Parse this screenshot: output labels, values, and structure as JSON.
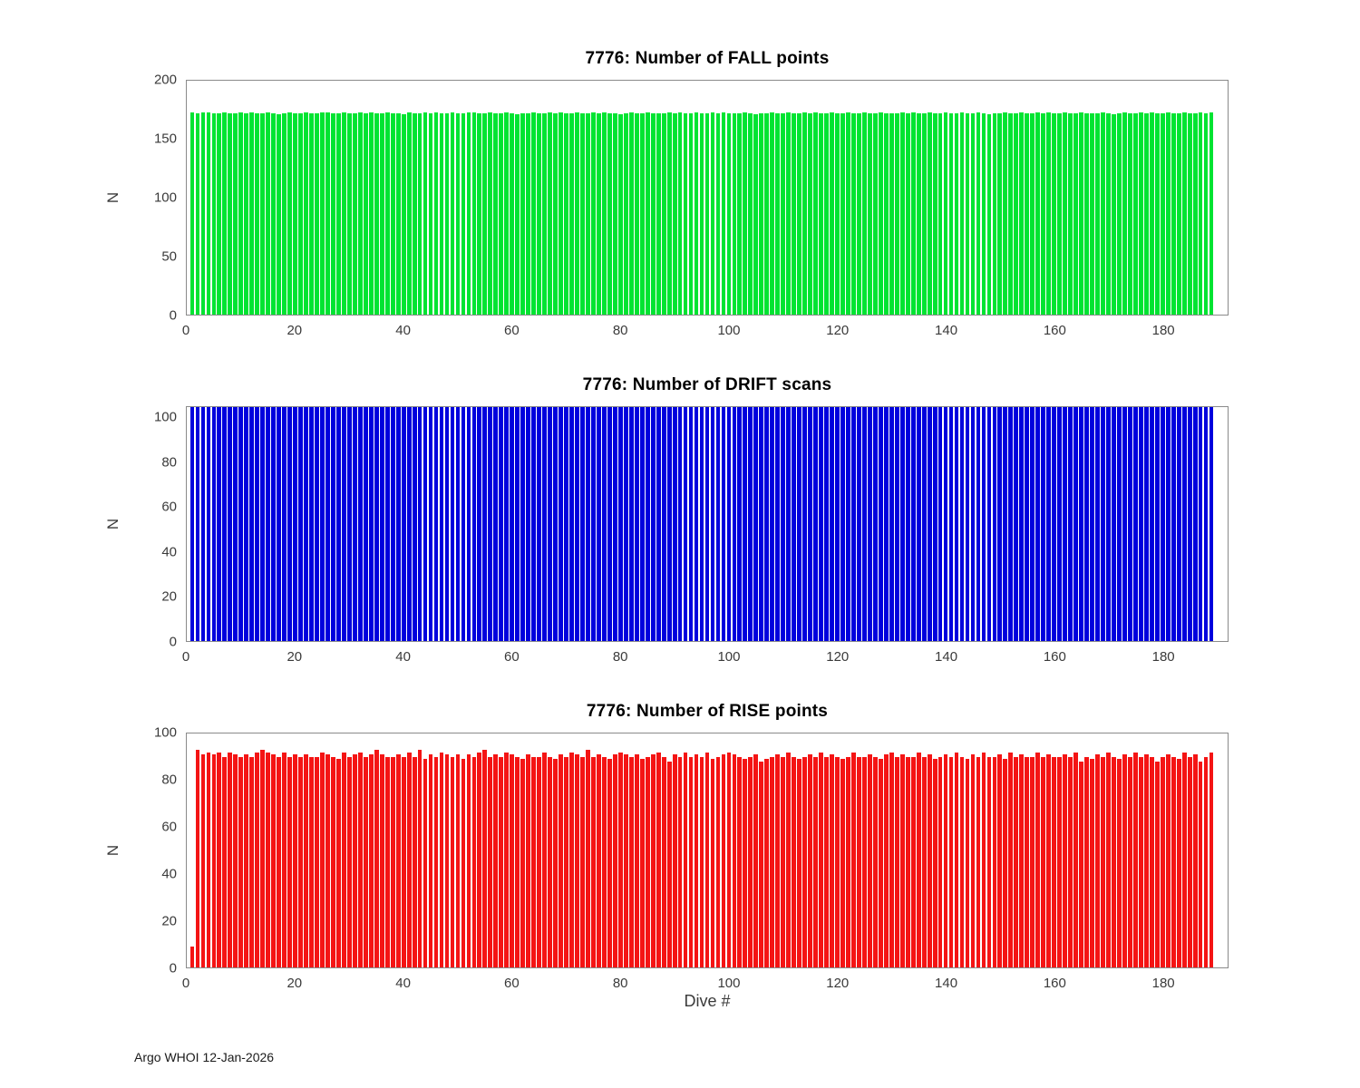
{
  "figure": {
    "footer": "Argo WHOI 12-Jan-2026",
    "xlabel": "Dive #"
  },
  "chart_data": [
    {
      "type": "bar",
      "title": "7776: Number of FALL points",
      "ylabel": "N",
      "color": "#00e432",
      "ylim": [
        0,
        200
      ],
      "yticks": [
        0,
        50,
        100,
        150,
        200
      ],
      "xticks": [
        0,
        20,
        40,
        60,
        80,
        100,
        120,
        140,
        160,
        180
      ],
      "xlim": [
        0,
        192
      ],
      "x_start": 1,
      "values": [
        173,
        172,
        173,
        173,
        172,
        172,
        173,
        172,
        172,
        173,
        172,
        173,
        172,
        172,
        173,
        172,
        171,
        172,
        173,
        172,
        172,
        173,
        172,
        172,
        173,
        173,
        172,
        172,
        173,
        172,
        172,
        173,
        172,
        173,
        172,
        172,
        173,
        172,
        172,
        171,
        173,
        172,
        172,
        173,
        172,
        173,
        172,
        172,
        173,
        172,
        172,
        173,
        173,
        172,
        172,
        173,
        172,
        172,
        173,
        172,
        171,
        172,
        172,
        173,
        172,
        172,
        173,
        172,
        173,
        172,
        172,
        173,
        172,
        172,
        173,
        172,
        173,
        172,
        172,
        171,
        172,
        173,
        172,
        172,
        173,
        172,
        172,
        172,
        173,
        172,
        173,
        172,
        172,
        173,
        172,
        172,
        173,
        172,
        173,
        172,
        172,
        172,
        173,
        172,
        171,
        172,
        172,
        173,
        172,
        172,
        173,
        172,
        172,
        173,
        172,
        173,
        172,
        172,
        173,
        172,
        172,
        173,
        172,
        172,
        173,
        172,
        172,
        173,
        172,
        172,
        172,
        173,
        172,
        173,
        172,
        172,
        173,
        172,
        172,
        173,
        172,
        172,
        173,
        172,
        172,
        173,
        172,
        171,
        172,
        172,
        173,
        172,
        172,
        173,
        172,
        172,
        173,
        172,
        173,
        172,
        172,
        173,
        172,
        172,
        173,
        172,
        172,
        172,
        173,
        172,
        171,
        172,
        173,
        172,
        172,
        173,
        172,
        173,
        172,
        172,
        173,
        172,
        172,
        173,
        172,
        172,
        173,
        172,
        173
      ]
    },
    {
      "type": "bar",
      "title": "7776: Number of DRIFT scans",
      "ylabel": "N",
      "color": "#0000dd",
      "ylim": [
        0,
        105
      ],
      "yticks": [
        0,
        20,
        40,
        60,
        80,
        100
      ],
      "xticks": [
        0,
        20,
        40,
        60,
        80,
        100,
        120,
        140,
        160,
        180
      ],
      "xlim": [
        0,
        192
      ],
      "x_start": 1,
      "values": [
        105,
        105,
        105,
        105,
        105,
        105,
        105,
        105,
        105,
        105,
        105,
        105,
        105,
        105,
        105,
        105,
        105,
        105,
        105,
        105,
        105,
        105,
        105,
        105,
        105,
        105,
        105,
        105,
        105,
        105,
        105,
        105,
        105,
        105,
        105,
        105,
        105,
        105,
        105,
        105,
        105,
        105,
        105,
        105,
        105,
        105,
        105,
        105,
        105,
        105,
        105,
        105,
        105,
        105,
        105,
        105,
        105,
        105,
        105,
        105,
        105,
        105,
        105,
        105,
        105,
        105,
        105,
        105,
        105,
        105,
        105,
        105,
        105,
        105,
        105,
        105,
        105,
        105,
        105,
        105,
        105,
        105,
        105,
        105,
        105,
        105,
        105,
        105,
        105,
        105,
        105,
        105,
        105,
        105,
        105,
        105,
        105,
        105,
        105,
        105,
        105,
        105,
        105,
        105,
        105,
        105,
        105,
        105,
        105,
        105,
        105,
        105,
        105,
        105,
        105,
        105,
        105,
        105,
        105,
        105,
        105,
        105,
        105,
        105,
        105,
        105,
        105,
        105,
        105,
        105,
        105,
        105,
        105,
        105,
        105,
        105,
        105,
        105,
        105,
        105,
        105,
        105,
        105,
        105,
        105,
        105,
        105,
        105,
        105,
        105,
        105,
        105,
        105,
        105,
        105,
        105,
        105,
        105,
        105,
        105,
        105,
        105,
        105,
        105,
        105,
        105,
        105,
        105,
        105,
        105,
        105,
        105,
        105,
        105,
        105,
        105,
        105,
        105,
        105,
        105,
        105,
        105,
        105,
        105,
        105,
        105,
        105,
        105,
        105
      ]
    },
    {
      "type": "bar",
      "title": "7776: Number of RISE points",
      "ylabel": "N",
      "color": "#f41414",
      "ylim": [
        0,
        100
      ],
      "yticks": [
        0,
        20,
        40,
        60,
        80,
        100
      ],
      "xticks": [
        0,
        20,
        40,
        60,
        80,
        100,
        120,
        140,
        160,
        180
      ],
      "xlim": [
        0,
        192
      ],
      "x_start": 1,
      "values": [
        9,
        93,
        91,
        92,
        91,
        92,
        90,
        92,
        91,
        90,
        91,
        90,
        92,
        93,
        92,
        91,
        90,
        92,
        90,
        91,
        90,
        91,
        90,
        90,
        92,
        91,
        90,
        89,
        92,
        90,
        91,
        92,
        90,
        91,
        93,
        91,
        90,
        90,
        91,
        90,
        92,
        90,
        93,
        89,
        91,
        90,
        92,
        91,
        90,
        91,
        89,
        91,
        90,
        92,
        93,
        90,
        91,
        90,
        92,
        91,
        90,
        89,
        91,
        90,
        90,
        92,
        90,
        89,
        91,
        90,
        92,
        91,
        90,
        93,
        90,
        91,
        90,
        89,
        91,
        92,
        91,
        90,
        91,
        89,
        90,
        91,
        92,
        90,
        88,
        91,
        90,
        92,
        90,
        91,
        90,
        92,
        89,
        90,
        91,
        92,
        91,
        90,
        89,
        90,
        91,
        88,
        89,
        90,
        91,
        90,
        92,
        90,
        89,
        90,
        91,
        90,
        92,
        90,
        91,
        90,
        89,
        90,
        92,
        90,
        90,
        91,
        90,
        89,
        91,
        92,
        90,
        91,
        90,
        90,
        92,
        90,
        91,
        89,
        90,
        91,
        90,
        92,
        90,
        89,
        91,
        90,
        92,
        90,
        90,
        91,
        89,
        92,
        90,
        91,
        90,
        90,
        92,
        90,
        91,
        90,
        90,
        91,
        90,
        92,
        88,
        90,
        89,
        91,
        90,
        92,
        90,
        89,
        91,
        90,
        92,
        90,
        91,
        90,
        88,
        90,
        91,
        90,
        89,
        92,
        90,
        91,
        88,
        90,
        92
      ]
    }
  ]
}
